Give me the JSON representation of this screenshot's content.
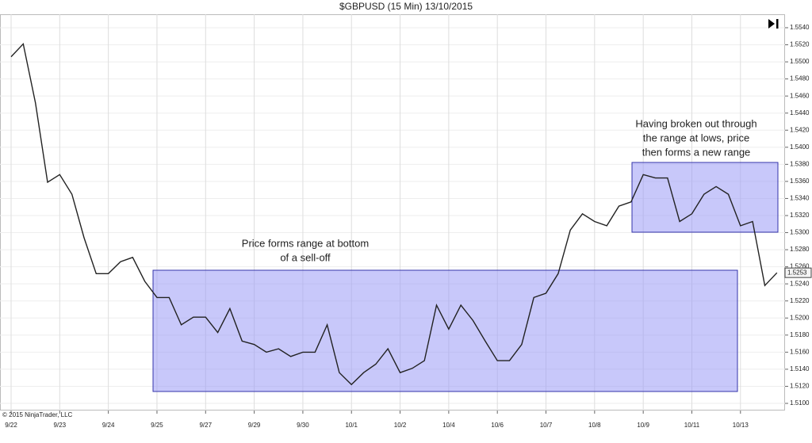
{
  "chart_data": {
    "type": "line",
    "title": "$GBPUSD (15 Min)  13/10/2015",
    "copyright": "© 2015 NinjaTrader, LLC",
    "categories": [
      "9/22",
      null,
      null,
      null,
      "9/23",
      null,
      null,
      null,
      "9/24",
      null,
      null,
      null,
      "9/25",
      null,
      null,
      null,
      "9/27",
      null,
      null,
      null,
      "9/29",
      null,
      null,
      null,
      "9/30",
      null,
      null,
      null,
      "10/1",
      null,
      null,
      null,
      "10/2",
      null,
      null,
      null,
      "10/4",
      null,
      null,
      null,
      "10/6",
      null,
      null,
      null,
      "10/7",
      null,
      null,
      null,
      "10/8",
      null,
      null,
      null,
      "10/9",
      null,
      null,
      null,
      "10/11",
      null,
      null,
      null,
      "10/13",
      null,
      null,
      null
    ],
    "series": [
      {
        "name": "GBPUSD",
        "color": "#222222",
        "values": [
          1.5506,
          1.5521,
          1.5452,
          1.5359,
          1.5368,
          1.5345,
          1.5294,
          1.5252,
          1.5252,
          1.5266,
          1.5271,
          1.5243,
          1.5224,
          1.5224,
          1.5192,
          1.5201,
          1.5201,
          1.5183,
          1.5211,
          1.5173,
          1.5169,
          1.516,
          1.5164,
          1.5155,
          1.516,
          1.516,
          1.5192,
          1.5136,
          1.5122,
          1.5136,
          1.5146,
          1.5164,
          1.5136,
          1.5141,
          1.515,
          1.5215,
          1.5187,
          1.5215,
          1.5197,
          1.5173,
          1.515,
          1.515,
          1.5169,
          1.5224,
          1.5229,
          1.5252,
          1.5303,
          1.5322,
          1.5313,
          1.5308,
          1.5331,
          1.5336,
          1.5368,
          1.5364,
          1.5364,
          1.5313,
          1.5322,
          1.5345,
          1.5354,
          1.5345,
          1.5308,
          1.5313,
          1.5238,
          1.5253
        ]
      }
    ],
    "last_price": 1.5253,
    "annotations": [
      {
        "lines": [
          "Price forms range at bottom",
          "of a sell-off"
        ]
      },
      {
        "lines": [
          "Having broken out through",
          "the range at lows, price",
          "then forms a new range"
        ]
      }
    ],
    "ylim": [
      1.5095,
      1.555
    ],
    "yticks": [
      {
        "value": 1.51,
        "label": "1.5100"
      },
      {
        "value": 1.512,
        "label": "1.5120"
      },
      {
        "value": 1.514,
        "label": "1.5140"
      },
      {
        "value": 1.516,
        "label": "1.5160"
      },
      {
        "value": 1.518,
        "label": "1.5180"
      },
      {
        "value": 1.52,
        "label": "1.5200"
      },
      {
        "value": 1.522,
        "label": "1.5220"
      },
      {
        "value": 1.524,
        "label": "1.5240"
      },
      {
        "value": 1.526,
        "label": "1.5260"
      },
      {
        "value": 1.528,
        "label": "1.5280"
      },
      {
        "value": 1.53,
        "label": "1.5300"
      },
      {
        "value": 1.532,
        "label": "1.5320"
      },
      {
        "value": 1.534,
        "label": "1.5340"
      },
      {
        "value": 1.536,
        "label": "1.5360"
      },
      {
        "value": 1.538,
        "label": "1.5380"
      },
      {
        "value": 1.54,
        "label": "1.5400"
      },
      {
        "value": 1.542,
        "label": "1.5420"
      },
      {
        "value": 1.544,
        "label": "1.5440"
      },
      {
        "value": 1.546,
        "label": "1.5460"
      },
      {
        "value": 1.548,
        "label": "1.5480"
      },
      {
        "value": 1.55,
        "label": "1.5500"
      },
      {
        "value": 1.552,
        "label": "1.5520"
      },
      {
        "value": 1.554,
        "label": "1.5540"
      }
    ],
    "grid": true
  }
}
